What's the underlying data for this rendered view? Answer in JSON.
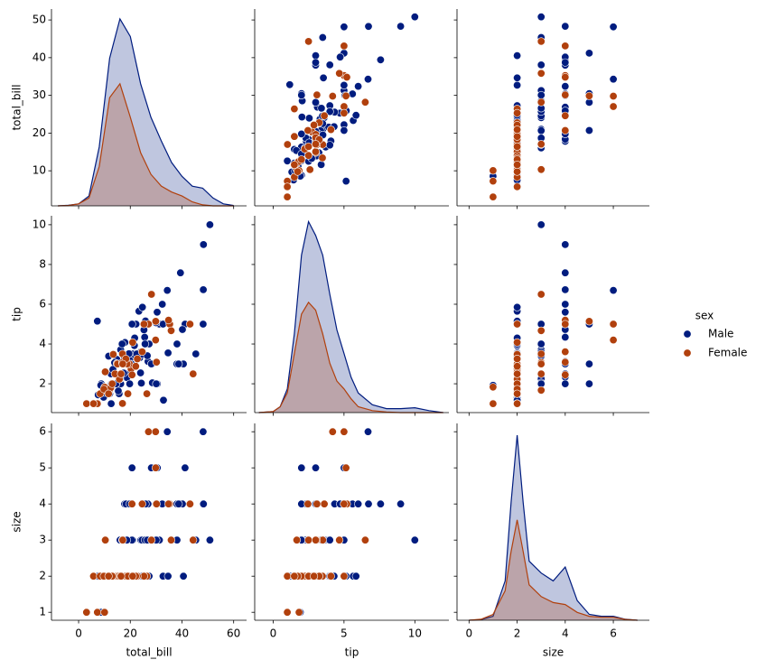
{
  "chart_data": {
    "type": "pairplot",
    "legend_title": "sex",
    "legend": "right",
    "variables": [
      {
        "name": "total_bill",
        "xlim": [
          -10.5,
          65
        ],
        "xticks": [
          0,
          20,
          40,
          60
        ],
        "ylim": [
          0.7,
          52.9
        ],
        "yticks": [
          10,
          20,
          30,
          40,
          50
        ],
        "kde_x": [
          -8,
          -4,
          0,
          4,
          8,
          12,
          16,
          20,
          24,
          28,
          32,
          36,
          40,
          44,
          48,
          52,
          56,
          60
        ],
        "kde_ylim": [
          0,
          1
        ]
      },
      {
        "name": "tip",
        "xlim": [
          -1.3,
          12.4
        ],
        "xticks": [
          0,
          5,
          10
        ],
        "ylim": [
          0.55,
          10.45
        ],
        "yticks": [
          2,
          4,
          6,
          8,
          10
        ],
        "kde_x": [
          -1,
          0,
          0.5,
          1,
          1.5,
          2,
          2.5,
          3,
          3.5,
          4,
          4.5,
          5,
          5.5,
          6,
          7,
          8,
          9,
          10,
          11,
          12
        ],
        "kde_ylim": [
          0,
          1
        ]
      },
      {
        "name": "size",
        "xlim": [
          -0.5,
          7.5
        ],
        "xticks": [
          0,
          2,
          4,
          6
        ],
        "ylim": [
          0.78,
          6.23
        ],
        "yticks": [
          1,
          2,
          3,
          4,
          5,
          6
        ],
        "kde_x": [
          0,
          0.5,
          1,
          1.5,
          1.75,
          2,
          2.25,
          2.5,
          3,
          3.5,
          4,
          4.5,
          5,
          5.5,
          6,
          6.5,
          7
        ],
        "kde_ylim": [
          0,
          1
        ]
      }
    ],
    "series": [
      {
        "name": "Male",
        "color": "#001c7f",
        "total_bill": [
          10.34,
          21.01,
          23.68,
          25.29,
          8.77,
          26.88,
          15.04,
          14.78,
          10.27,
          15.42,
          18.43,
          21.58,
          16.29,
          20.65,
          17.92,
          39.42,
          19.82,
          17.81,
          13.37,
          12.69,
          21.7,
          9.55,
          18.35,
          17.78,
          24.06,
          16.31,
          18.69,
          31.27,
          16.04,
          17.46,
          13.94,
          9.68,
          30.4,
          18.29,
          22.23,
          32.4,
          28.55,
          18.04,
          12.54,
          9.94,
          25.56,
          19.49,
          38.01,
          11.24,
          48.27,
          50.81,
          48.33,
          7.25,
          8.58,
          7.56,
          48.17,
          34.3,
          41.19,
          20.69,
          28.15,
          30.46,
          40.55,
          45.35,
          32.83,
          12.6,
          32.68,
          24.52,
          38.07,
          23.95,
          29.93,
          34.63,
          25.89,
          20.45,
          13.28,
          22.49,
          15.69,
          11.61,
          23.33,
          40.17,
          27.28,
          12.03,
          15.36,
          17.51,
          30.06,
          25.71,
          14.48,
          26.59,
          38.73,
          24.27,
          16.82,
          24.71,
          19.77
        ],
        "tip": [
          1.66,
          3.5,
          3.31,
          4.71,
          2.0,
          3.12,
          1.96,
          3.23,
          1.71,
          1.57,
          3.0,
          3.92,
          3.71,
          3.35,
          4.08,
          7.58,
          3.18,
          2.34,
          2.0,
          2.0,
          4.3,
          1.45,
          2.5,
          3.27,
          3.6,
          2.0,
          2.31,
          5.0,
          2.24,
          2.54,
          3.06,
          1.32,
          5.6,
          3.0,
          5.0,
          6.0,
          2.05,
          3.0,
          2.5,
          1.56,
          4.34,
          3.51,
          3.0,
          1.76,
          6.73,
          10.0,
          9.0,
          5.15,
          1.92,
          1.44,
          5.0,
          6.7,
          5.0,
          5.0,
          3.0,
          2.0,
          3.0,
          3.5,
          1.17,
          1.0,
          5.0,
          3.48,
          4.0,
          2.55,
          5.07,
          3.55,
          5.16,
          3.0,
          2.72,
          3.5,
          1.5,
          3.39,
          5.65,
          4.73,
          4.0,
          1.5,
          1.64,
          3.0,
          2.0,
          4.0,
          2.0,
          3.41,
          3.0,
          2.03,
          4.0,
          5.85,
          2.0
        ],
        "size": [
          3,
          3,
          2,
          4,
          2,
          4,
          2,
          2,
          2,
          2,
          4,
          2,
          3,
          3,
          2,
          4,
          2,
          4,
          2,
          2,
          2,
          2,
          4,
          2,
          3,
          3,
          3,
          3,
          3,
          2,
          2,
          2,
          4,
          2,
          2,
          4,
          3,
          2,
          2,
          2,
          4,
          2,
          4,
          2,
          4,
          3,
          4,
          2,
          1,
          2,
          6,
          6,
          5,
          5,
          5,
          5,
          2,
          3,
          2,
          2,
          2,
          3,
          3,
          2,
          4,
          2,
          4,
          4,
          2,
          2,
          2,
          2,
          2,
          4,
          2,
          2,
          2,
          2,
          3,
          3,
          2,
          3,
          4,
          2,
          2,
          2,
          4
        ],
        "kde": [
          [
            0,
            0.003,
            0.01,
            0.05,
            0.3,
            0.75,
            0.95,
            0.86,
            0.62,
            0.45,
            0.33,
            0.22,
            0.15,
            0.1,
            0.09,
            0.04,
            0.01,
            0.002
          ],
          [
            0,
            0.005,
            0.03,
            0.12,
            0.4,
            0.8,
            0.97,
            0.9,
            0.8,
            0.6,
            0.42,
            0.3,
            0.18,
            0.1,
            0.04,
            0.02,
            0.02,
            0.025,
            0.01,
            0
          ],
          [
            0,
            0.003,
            0.02,
            0.2,
            0.6,
            0.94,
            0.6,
            0.3,
            0.24,
            0.2,
            0.27,
            0.1,
            0.03,
            0.02,
            0.02,
            0.005,
            0
          ]
        ]
      },
      {
        "name": "Female",
        "color": "#b1400d",
        "total_bill": [
          16.99,
          24.59,
          35.26,
          14.83,
          10.33,
          16.97,
          20.29,
          15.77,
          19.65,
          15.06,
          20.69,
          16.93,
          10.29,
          34.81,
          26.41,
          3.07,
          7.25,
          10.07,
          5.75,
          44.3,
          27.05,
          29.8,
          29.85,
          43.11,
          35.83,
          28.2,
          18.78,
          25.28,
          14.07,
          13.42,
          11.87,
          18.26,
          8.35,
          22.75,
          19.08,
          12.43,
          13.0,
          16.4,
          17.07,
          30.14,
          22.12,
          9.78,
          20.92,
          11.59
        ],
        "tip": [
          1.01,
          3.61,
          5.0,
          3.02,
          1.67,
          3.5,
          2.75,
          2.23,
          3.0,
          3.0,
          2.45,
          3.07,
          2.6,
          5.2,
          1.5,
          1.0,
          1.0,
          1.83,
          1.0,
          2.5,
          5.0,
          4.2,
          5.14,
          5.0,
          4.67,
          6.5,
          3.0,
          5.0,
          2.5,
          3.48,
          1.63,
          3.25,
          1.5,
          3.25,
          1.5,
          1.8,
          2.0,
          2.5,
          3.0,
          3.09,
          2.88,
          1.73,
          4.08,
          1.5
        ],
        "size": [
          2,
          4,
          4,
          2,
          3,
          3,
          2,
          2,
          2,
          2,
          4,
          3,
          2,
          4,
          2,
          1,
          1,
          1,
          2,
          3,
          6,
          6,
          5,
          4,
          3,
          3,
          2,
          2,
          2,
          2,
          2,
          2,
          2,
          2,
          2,
          2,
          2,
          2,
          3,
          4,
          2,
          2,
          2,
          2
        ],
        "kde": [
          [
            0,
            0.002,
            0.01,
            0.04,
            0.2,
            0.55,
            0.62,
            0.45,
            0.27,
            0.16,
            0.1,
            0.07,
            0.05,
            0.02,
            0.005,
            0,
            0,
            0
          ],
          [
            0,
            0.005,
            0.03,
            0.1,
            0.3,
            0.5,
            0.56,
            0.52,
            0.4,
            0.25,
            0.16,
            0.12,
            0.07,
            0.03,
            0.01,
            0.003,
            0,
            0,
            0,
            0
          ],
          [
            0,
            0.005,
            0.03,
            0.15,
            0.35,
            0.51,
            0.35,
            0.18,
            0.12,
            0.09,
            0.08,
            0.04,
            0.02,
            0.015,
            0.015,
            0.004,
            0
          ]
        ]
      }
    ]
  }
}
